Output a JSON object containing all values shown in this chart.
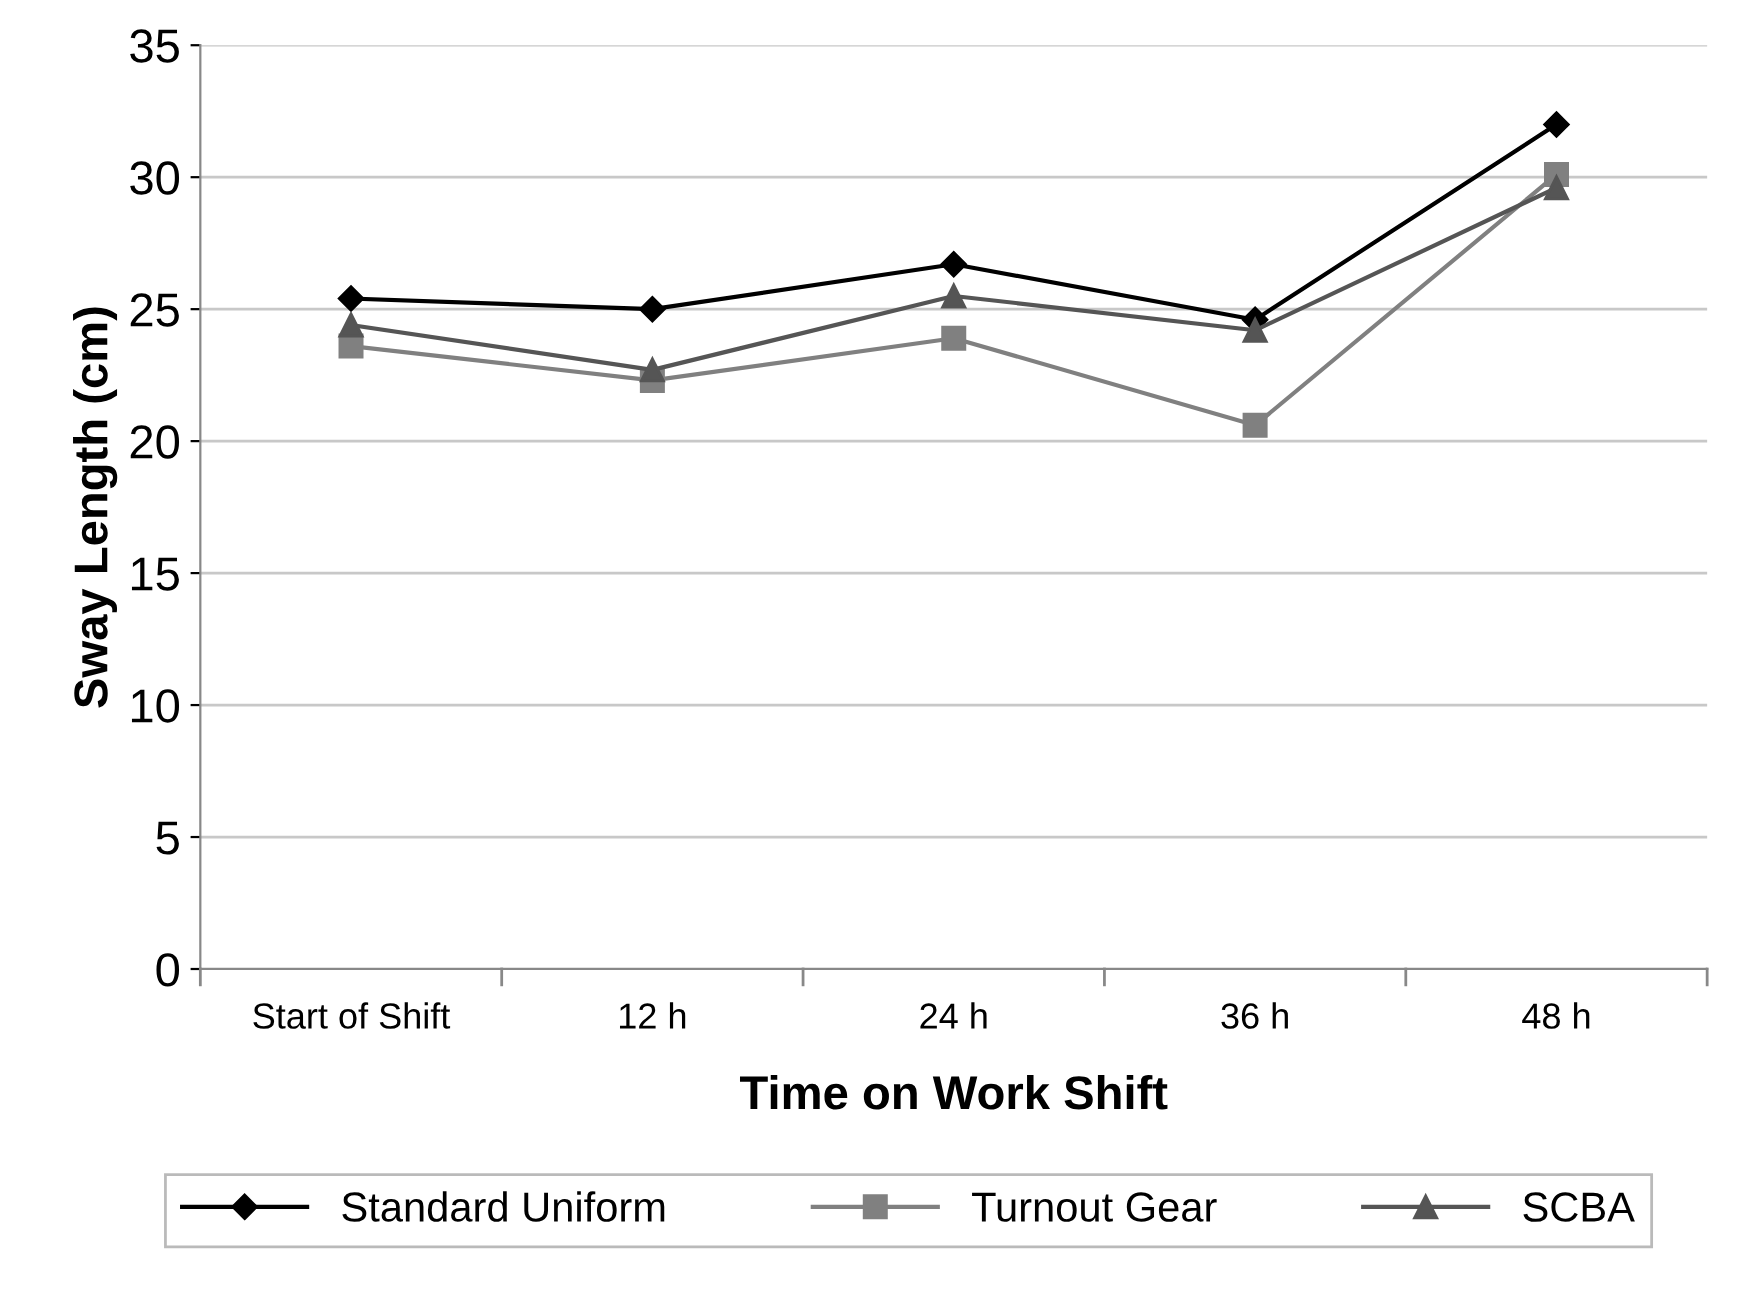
{
  "chart_data": {
    "type": "line",
    "xlabel": "Time on Work Shift",
    "ylabel": "Sway Length (cm)",
    "categories": [
      "Start of Shift",
      "12 h",
      "24 h",
      "36 h",
      "48 h"
    ],
    "series": [
      {
        "name": "Standard Uniform",
        "color": "#000000",
        "marker": "diamond",
        "values": [
          25.4,
          25.0,
          26.7,
          24.6,
          32.0
        ]
      },
      {
        "name": "Turnout Gear",
        "color": "#808080",
        "marker": "square",
        "values": [
          23.6,
          22.3,
          23.9,
          20.6,
          30.1
        ]
      },
      {
        "name": "SCBA",
        "color": "#555555",
        "marker": "triangle",
        "values": [
          24.4,
          22.7,
          25.5,
          24.2,
          29.6
        ]
      }
    ],
    "ylim": [
      0,
      35
    ],
    "yticks": [
      0,
      5,
      10,
      15,
      20,
      25,
      30,
      35
    ],
    "grid": "y",
    "legend": "bottom",
    "line_style": "solid"
  }
}
